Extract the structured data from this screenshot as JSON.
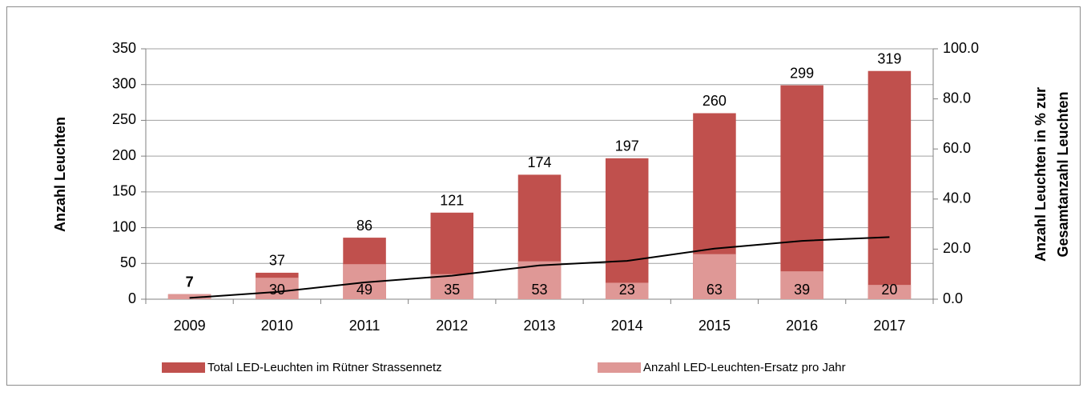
{
  "chart_data": {
    "type": "bar",
    "categories": [
      "2009",
      "2010",
      "2011",
      "2012",
      "2013",
      "2014",
      "2015",
      "2016",
      "2017"
    ],
    "series": [
      {
        "name": "Total LED-Leuchten im Rütner Strassennetz",
        "color": "#c0504d",
        "values": [
          7,
          37,
          86,
          121,
          174,
          197,
          260,
          299,
          319
        ]
      },
      {
        "name": "Anzahl LED-Leuchten-Ersatz pro Jahr",
        "color": "#df9896",
        "values": [
          7,
          30,
          49,
          35,
          53,
          23,
          63,
          39,
          20
        ],
        "value_labels": [
          null,
          "30",
          "49",
          "35",
          "53",
          "23",
          "63",
          "39",
          "20"
        ]
      },
      {
        "type": "line",
        "axis": "y2",
        "color": "#000000",
        "values": [
          0.5,
          2.9,
          6.7,
          9.4,
          13.5,
          15.3,
          20.2,
          23.3,
          24.8
        ]
      }
    ],
    "ylabel": "Anzahl Leuchten",
    "y2label": [
      "Anzahl Leuchten in % zur",
      "Gesamtanzahl Leuchten"
    ],
    "ylim": [
      0,
      350
    ],
    "yticks": [
      0,
      50,
      100,
      150,
      200,
      250,
      300,
      350
    ],
    "y2lim": [
      0,
      100
    ],
    "y2ticks": [
      {
        "value": 0,
        "label": "0.0"
      },
      {
        "value": 20,
        "label": "20.0"
      },
      {
        "value": 40,
        "label": "40.0"
      },
      {
        "value": 60,
        "label": "60.0"
      },
      {
        "value": 80,
        "label": "80.0"
      },
      {
        "value": 100,
        "label": "100.0"
      }
    ],
    "grid": true,
    "legend": "bottom"
  }
}
